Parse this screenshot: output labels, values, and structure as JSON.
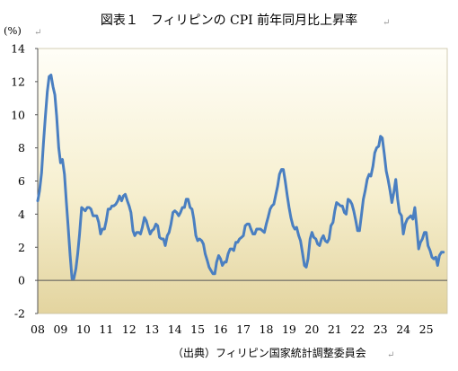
{
  "chart_data": {
    "type": "line",
    "title": "図表１　フィリピンの CPI 前年同月比上昇率",
    "yunit": "(%)",
    "source": "（出典）フィリピン国家統計調整委員会",
    "ylim": [
      -2,
      14
    ],
    "yticks": [
      14,
      12,
      10,
      8,
      6,
      4,
      2,
      0,
      -2
    ],
    "xlim": [
      2008,
      2025.92
    ],
    "xticks": [
      {
        "label": "08",
        "x": 2008
      },
      {
        "label": "09",
        "x": 2009
      },
      {
        "label": "10",
        "x": 2010
      },
      {
        "label": "11",
        "x": 2011
      },
      {
        "label": "12",
        "x": 2012
      },
      {
        "label": "13",
        "x": 2013
      },
      {
        "label": "14",
        "x": 2014
      },
      {
        "label": "15",
        "x": 2015
      },
      {
        "label": "16",
        "x": 2016
      },
      {
        "label": "17",
        "x": 2017
      },
      {
        "label": "18",
        "x": 2018
      },
      {
        "label": "19",
        "x": 2019
      },
      {
        "label": "20",
        "x": 2020
      },
      {
        "label": "21",
        "x": 2021
      },
      {
        "label": "22",
        "x": 2022
      },
      {
        "label": "23",
        "x": 2023
      },
      {
        "label": "24",
        "x": 2024
      },
      {
        "label": "25",
        "x": 2025
      }
    ],
    "grid": false,
    "line_color": "#4a7fc1",
    "series": [
      {
        "points": [
          [
            2008.0,
            4.8
          ],
          [
            2008.08,
            5.4
          ],
          [
            2008.17,
            6.5
          ],
          [
            2008.25,
            8.3
          ],
          [
            2008.33,
            9.8
          ],
          [
            2008.42,
            11.4
          ],
          [
            2008.5,
            12.3
          ],
          [
            2008.58,
            12.4
          ],
          [
            2008.67,
            11.7
          ],
          [
            2008.75,
            11.2
          ],
          [
            2008.83,
            9.9
          ],
          [
            2008.92,
            8.0
          ],
          [
            2009.0,
            7.1
          ],
          [
            2009.08,
            7.3
          ],
          [
            2009.17,
            6.4
          ],
          [
            2009.25,
            4.8
          ],
          [
            2009.33,
            3.3
          ],
          [
            2009.42,
            1.5
          ],
          [
            2009.5,
            0.1
          ],
          [
            2009.58,
            0.1
          ],
          [
            2009.67,
            0.7
          ],
          [
            2009.75,
            1.6
          ],
          [
            2009.83,
            2.8
          ],
          [
            2009.92,
            4.4
          ],
          [
            2010.0,
            4.3
          ],
          [
            2010.08,
            4.2
          ],
          [
            2010.17,
            4.4
          ],
          [
            2010.25,
            4.4
          ],
          [
            2010.33,
            4.3
          ],
          [
            2010.42,
            3.9
          ],
          [
            2010.5,
            3.9
          ],
          [
            2010.58,
            3.9
          ],
          [
            2010.67,
            3.5
          ],
          [
            2010.75,
            2.8
          ],
          [
            2010.83,
            3.1
          ],
          [
            2010.92,
            3.1
          ],
          [
            2011.0,
            3.6
          ],
          [
            2011.08,
            4.3
          ],
          [
            2011.17,
            4.3
          ],
          [
            2011.25,
            4.5
          ],
          [
            2011.33,
            4.5
          ],
          [
            2011.42,
            4.6
          ],
          [
            2011.5,
            4.8
          ],
          [
            2011.58,
            5.1
          ],
          [
            2011.67,
            4.8
          ],
          [
            2011.75,
            5.1
          ],
          [
            2011.83,
            5.2
          ],
          [
            2011.92,
            4.8
          ],
          [
            2012.0,
            4.5
          ],
          [
            2012.08,
            4.1
          ],
          [
            2012.17,
            3.0
          ],
          [
            2012.25,
            2.7
          ],
          [
            2012.33,
            2.9
          ],
          [
            2012.42,
            2.9
          ],
          [
            2012.5,
            2.8
          ],
          [
            2012.58,
            3.2
          ],
          [
            2012.67,
            3.8
          ],
          [
            2012.75,
            3.6
          ],
          [
            2012.83,
            3.2
          ],
          [
            2012.92,
            2.8
          ],
          [
            2013.0,
            3.0
          ],
          [
            2013.08,
            3.1
          ],
          [
            2013.17,
            3.4
          ],
          [
            2013.25,
            3.3
          ],
          [
            2013.33,
            2.6
          ],
          [
            2013.42,
            2.5
          ],
          [
            2013.5,
            2.5
          ],
          [
            2013.58,
            2.1
          ],
          [
            2013.67,
            2.7
          ],
          [
            2013.75,
            2.9
          ],
          [
            2013.83,
            3.4
          ],
          [
            2013.92,
            4.1
          ],
          [
            2014.0,
            4.2
          ],
          [
            2014.08,
            4.1
          ],
          [
            2014.17,
            3.9
          ],
          [
            2014.25,
            4.1
          ],
          [
            2014.33,
            4.4
          ],
          [
            2014.42,
            4.4
          ],
          [
            2014.5,
            4.9
          ],
          [
            2014.58,
            4.9
          ],
          [
            2014.67,
            4.4
          ],
          [
            2014.75,
            4.3
          ],
          [
            2014.83,
            3.7
          ],
          [
            2014.92,
            2.7
          ],
          [
            2015.0,
            2.4
          ],
          [
            2015.08,
            2.5
          ],
          [
            2015.17,
            2.4
          ],
          [
            2015.25,
            2.2
          ],
          [
            2015.33,
            1.6
          ],
          [
            2015.42,
            1.2
          ],
          [
            2015.5,
            0.8
          ],
          [
            2015.58,
            0.6
          ],
          [
            2015.67,
            0.4
          ],
          [
            2015.75,
            0.4
          ],
          [
            2015.83,
            1.1
          ],
          [
            2015.92,
            1.5
          ],
          [
            2016.0,
            1.3
          ],
          [
            2016.08,
            0.9
          ],
          [
            2016.17,
            1.1
          ],
          [
            2016.25,
            1.1
          ],
          [
            2016.33,
            1.6
          ],
          [
            2016.42,
            1.9
          ],
          [
            2016.5,
            1.9
          ],
          [
            2016.58,
            1.8
          ],
          [
            2016.67,
            2.3
          ],
          [
            2016.75,
            2.3
          ],
          [
            2016.83,
            2.5
          ],
          [
            2016.92,
            2.6
          ],
          [
            2017.0,
            2.7
          ],
          [
            2017.08,
            3.3
          ],
          [
            2017.17,
            3.4
          ],
          [
            2017.25,
            3.4
          ],
          [
            2017.33,
            3.1
          ],
          [
            2017.42,
            2.8
          ],
          [
            2017.5,
            2.8
          ],
          [
            2017.58,
            3.1
          ],
          [
            2017.67,
            3.1
          ],
          [
            2017.75,
            3.1
          ],
          [
            2017.83,
            3.0
          ],
          [
            2017.92,
            2.9
          ],
          [
            2018.0,
            3.4
          ],
          [
            2018.08,
            3.8
          ],
          [
            2018.17,
            4.3
          ],
          [
            2018.25,
            4.5
          ],
          [
            2018.33,
            4.6
          ],
          [
            2018.42,
            5.2
          ],
          [
            2018.5,
            5.7
          ],
          [
            2018.58,
            6.4
          ],
          [
            2018.67,
            6.7
          ],
          [
            2018.75,
            6.7
          ],
          [
            2018.83,
            6.0
          ],
          [
            2018.92,
            5.1
          ],
          [
            2019.0,
            4.4
          ],
          [
            2019.08,
            3.8
          ],
          [
            2019.17,
            3.3
          ],
          [
            2019.25,
            3.1
          ],
          [
            2019.33,
            3.2
          ],
          [
            2019.42,
            2.7
          ],
          [
            2019.5,
            2.4
          ],
          [
            2019.58,
            1.7
          ],
          [
            2019.67,
            0.9
          ],
          [
            2019.75,
            0.8
          ],
          [
            2019.83,
            1.3
          ],
          [
            2019.92,
            2.5
          ],
          [
            2020.0,
            2.9
          ],
          [
            2020.08,
            2.6
          ],
          [
            2020.17,
            2.5
          ],
          [
            2020.25,
            2.2
          ],
          [
            2020.33,
            2.1
          ],
          [
            2020.42,
            2.5
          ],
          [
            2020.5,
            2.7
          ],
          [
            2020.58,
            2.4
          ],
          [
            2020.67,
            2.3
          ],
          [
            2020.75,
            2.5
          ],
          [
            2020.83,
            3.3
          ],
          [
            2020.92,
            3.5
          ],
          [
            2021.0,
            4.2
          ],
          [
            2021.08,
            4.7
          ],
          [
            2021.17,
            4.6
          ],
          [
            2021.25,
            4.5
          ],
          [
            2021.33,
            4.5
          ],
          [
            2021.42,
            4.1
          ],
          [
            2021.5,
            4.0
          ],
          [
            2021.58,
            4.9
          ],
          [
            2021.67,
            4.8
          ],
          [
            2021.75,
            4.6
          ],
          [
            2021.83,
            4.2
          ],
          [
            2021.92,
            3.6
          ],
          [
            2022.0,
            3.0
          ],
          [
            2022.08,
            3.0
          ],
          [
            2022.17,
            4.0
          ],
          [
            2022.25,
            4.9
          ],
          [
            2022.33,
            5.4
          ],
          [
            2022.42,
            6.1
          ],
          [
            2022.5,
            6.4
          ],
          [
            2022.58,
            6.3
          ],
          [
            2022.67,
            6.9
          ],
          [
            2022.75,
            7.7
          ],
          [
            2022.83,
            8.0
          ],
          [
            2022.92,
            8.1
          ],
          [
            2023.0,
            8.7
          ],
          [
            2023.08,
            8.6
          ],
          [
            2023.17,
            7.6
          ],
          [
            2023.25,
            6.6
          ],
          [
            2023.33,
            6.1
          ],
          [
            2023.42,
            5.4
          ],
          [
            2023.5,
            4.7
          ],
          [
            2023.58,
            5.3
          ],
          [
            2023.67,
            6.1
          ],
          [
            2023.75,
            4.9
          ],
          [
            2023.83,
            4.1
          ],
          [
            2023.92,
            3.9
          ],
          [
            2024.0,
            2.8
          ],
          [
            2024.08,
            3.4
          ],
          [
            2024.17,
            3.7
          ],
          [
            2024.25,
            3.8
          ],
          [
            2024.33,
            3.9
          ],
          [
            2024.42,
            3.7
          ],
          [
            2024.5,
            4.4
          ],
          [
            2024.58,
            3.3
          ],
          [
            2024.67,
            1.9
          ],
          [
            2024.75,
            2.3
          ],
          [
            2024.83,
            2.5
          ],
          [
            2024.92,
            2.9
          ],
          [
            2025.0,
            2.9
          ],
          [
            2025.08,
            2.1
          ],
          [
            2025.17,
            1.8
          ],
          [
            2025.25,
            1.4
          ],
          [
            2025.33,
            1.3
          ],
          [
            2025.42,
            1.4
          ],
          [
            2025.5,
            0.9
          ],
          [
            2025.58,
            1.5
          ],
          [
            2025.67,
            1.7
          ],
          [
            2025.75,
            1.7
          ]
        ]
      }
    ]
  }
}
